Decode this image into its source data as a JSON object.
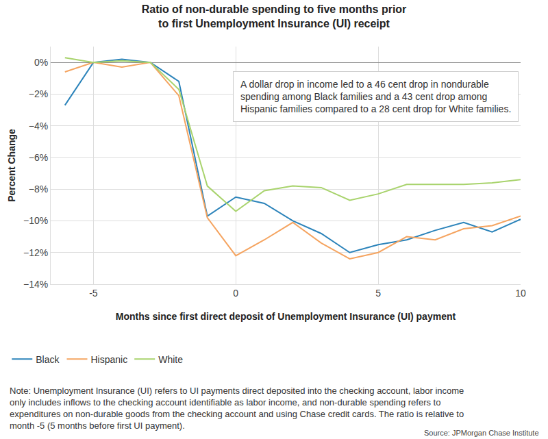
{
  "chart_data": {
    "type": "line",
    "title": [
      "Ratio of non-durable spending to five months prior",
      "to first Unemployment Insurance (UI) receipt"
    ],
    "x_label": "Months since first direct deposit of Unemployment Insurance (UI) payment",
    "y_label": "Percent Change",
    "x": [
      -6,
      -5,
      -4,
      -3,
      -2,
      -1,
      0,
      1,
      2,
      3,
      4,
      5,
      6,
      7,
      8,
      9,
      10
    ],
    "series": [
      {
        "name": "Black",
        "color": "#2b83ba",
        "values": [
          -2.7,
          0,
          0.2,
          0,
          -1.2,
          -9.7,
          -8.5,
          -8.9,
          -10.0,
          -10.8,
          -12.0,
          -11.5,
          -11.2,
          -10.6,
          -10.1,
          -10.7,
          -9.9
        ]
      },
      {
        "name": "Hispanic",
        "color": "#f5a460",
        "values": [
          -0.6,
          0,
          -0.3,
          0,
          -2.1,
          -9.8,
          -12.2,
          -11.2,
          -10.1,
          -11.4,
          -12.4,
          -12.0,
          -11.0,
          -11.2,
          -10.5,
          -10.3,
          -9.7
        ]
      },
      {
        "name": "White",
        "color": "#a8d36c",
        "values": [
          0.3,
          0,
          0.1,
          0,
          -1.7,
          -7.8,
          -9.4,
          -8.1,
          -7.8,
          -7.9,
          -8.7,
          -8.3,
          -7.7,
          -7.7,
          -7.7,
          -7.6,
          -7.4
        ]
      }
    ],
    "xlim": [
      -6.5,
      10
    ],
    "xticks": [
      -5,
      0,
      5,
      10
    ],
    "ylim": [
      -14,
      1
    ],
    "yticks": [
      {
        "value": 0,
        "label": "0%"
      },
      {
        "value": -2,
        "label": "−2%"
      },
      {
        "value": -4,
        "label": "−4%"
      },
      {
        "value": -6,
        "label": "−6%"
      },
      {
        "value": -8,
        "label": "−8%"
      },
      {
        "value": -10,
        "label": "−10%"
      },
      {
        "value": -12,
        "label": "−12%"
      },
      {
        "value": -14,
        "label": "−14%"
      }
    ],
    "grid": true,
    "legend": "bottom left",
    "annotation": [
      "A dollar drop in income led to a 46 cent drop in nondurable",
      "spending among Black families and a 43 cent drop among",
      "Hispanic families compared to a 28 cent drop for White families."
    ],
    "note": [
      "Note: Unemployment Insurance (UI) refers to UI payments direct deposited into the checking account, labor income",
      "only includes inflows to the checking account identifiable as labor income, and non-durable spending refers to",
      "expenditures on non-durable goods from the checking account and using Chase credit cards. The ratio is relative to",
      "month -5 (5 months before first UI payment)."
    ],
    "source": "Source: JPMorgan Chase Institute"
  }
}
